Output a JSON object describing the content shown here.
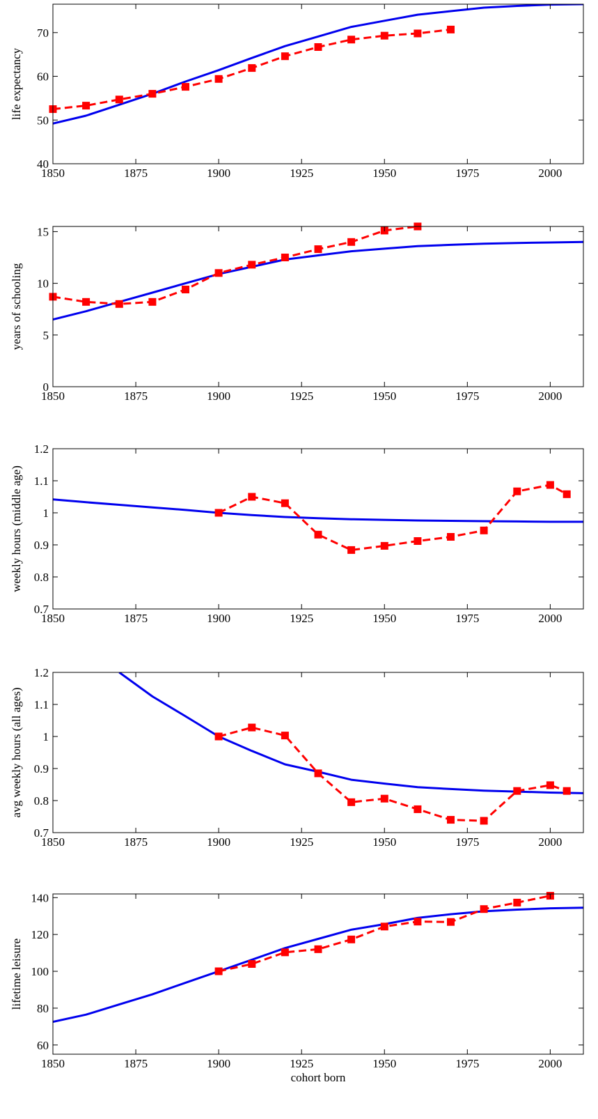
{
  "chart_data": [
    {
      "type": "line",
      "ylabel": "life expectancy",
      "xlabel": "",
      "xlim": [
        1850,
        2010
      ],
      "ylim": [
        40,
        76.5
      ],
      "xticks": [
        1850,
        1875,
        1900,
        1925,
        1950,
        1975,
        2000
      ],
      "yticks": [
        40,
        50,
        60,
        70
      ],
      "grid": false,
      "series": [
        {
          "style": "solid",
          "color": "#0000ee",
          "x": [
            1850,
            1860,
            1870,
            1880,
            1890,
            1900,
            1910,
            1920,
            1930,
            1940,
            1950,
            1960,
            1970,
            1980,
            1990,
            2000,
            2010
          ],
          "y": [
            49.2,
            51.0,
            53.5,
            56.0,
            58.8,
            61.4,
            64.2,
            66.9,
            69.1,
            71.3,
            72.7,
            74.1,
            74.9,
            75.7,
            76.1,
            76.4,
            76.5
          ]
        },
        {
          "style": "dashed",
          "color": "#ff0000",
          "marker": "square",
          "x": [
            1850,
            1860,
            1870,
            1880,
            1890,
            1900,
            1910,
            1920,
            1930,
            1940,
            1950,
            1960,
            1970
          ],
          "y": [
            52.5,
            53.3,
            54.7,
            56.0,
            57.6,
            59.4,
            61.9,
            64.6,
            66.7,
            68.4,
            69.3,
            69.8,
            70.7
          ]
        }
      ]
    },
    {
      "type": "line",
      "ylabel": "years of schooling",
      "xlabel": "",
      "xlim": [
        1850,
        2010
      ],
      "ylim": [
        0,
        15.5
      ],
      "xticks": [
        1850,
        1875,
        1900,
        1925,
        1950,
        1975,
        2000
      ],
      "yticks": [
        0,
        5,
        10,
        15
      ],
      "grid": false,
      "series": [
        {
          "style": "solid",
          "color": "#0000ee",
          "x": [
            1850,
            1860,
            1870,
            1880,
            1890,
            1900,
            1910,
            1920,
            1930,
            1940,
            1950,
            1960,
            1970,
            1980,
            1990,
            2000,
            2010
          ],
          "y": [
            6.5,
            7.3,
            8.2,
            9.1,
            10.0,
            10.9,
            11.6,
            12.3,
            12.7,
            13.1,
            13.35,
            13.6,
            13.72,
            13.83,
            13.9,
            13.95,
            14.0
          ]
        },
        {
          "style": "dashed",
          "color": "#ff0000",
          "marker": "square",
          "x": [
            1850,
            1860,
            1870,
            1880,
            1890,
            1900,
            1910,
            1920,
            1930,
            1940,
            1950,
            1960
          ],
          "y": [
            8.7,
            8.2,
            8.0,
            8.2,
            9.4,
            11.0,
            11.8,
            12.5,
            13.3,
            14.0,
            15.1,
            15.5
          ]
        }
      ]
    },
    {
      "type": "line",
      "ylabel": "weekly hours (middle age)",
      "xlabel": "",
      "xlim": [
        1850,
        2010
      ],
      "ylim": [
        0.7,
        1.2
      ],
      "xticks": [
        1850,
        1875,
        1900,
        1925,
        1950,
        1975,
        2000
      ],
      "yticks": [
        0.7,
        0.8,
        0.9,
        1,
        1.1,
        1.2
      ],
      "grid": false,
      "series": [
        {
          "style": "solid",
          "color": "#0000ee",
          "x": [
            1850,
            1860,
            1870,
            1880,
            1890,
            1900,
            1910,
            1920,
            1930,
            1940,
            1950,
            1960,
            1970,
            1980,
            1990,
            2000,
            2010
          ],
          "y": [
            1.042,
            1.033,
            1.025,
            1.017,
            1.009,
            1.0,
            0.993,
            0.987,
            0.983,
            0.98,
            0.978,
            0.976,
            0.975,
            0.974,
            0.973,
            0.972,
            0.972
          ]
        },
        {
          "style": "dashed",
          "color": "#ff0000",
          "marker": "square",
          "x": [
            1900,
            1910,
            1920,
            1930,
            1940,
            1950,
            1960,
            1970,
            1980,
            1990,
            2000,
            2005
          ],
          "y": [
            1.0,
            1.05,
            1.03,
            0.932,
            0.884,
            0.897,
            0.912,
            0.925,
            0.945,
            1.067,
            1.087,
            1.058
          ]
        }
      ]
    },
    {
      "type": "line",
      "ylabel": "avg weekly hours (all ages)",
      "xlabel": "",
      "xlim": [
        1850,
        2010
      ],
      "ylim": [
        0.7,
        1.2
      ],
      "xticks": [
        1850,
        1875,
        1900,
        1925,
        1950,
        1975,
        2000
      ],
      "yticks": [
        0.7,
        0.8,
        0.9,
        1,
        1.1,
        1.2
      ],
      "grid": false,
      "series": [
        {
          "style": "solid",
          "color": "#0000ee",
          "x": [
            1870,
            1880,
            1890,
            1900,
            1910,
            1920,
            1930,
            1940,
            1950,
            1960,
            1970,
            1980,
            1990,
            2000,
            2010
          ],
          "y": [
            1.2,
            1.125,
            1.063,
            1.0,
            0.955,
            0.913,
            0.89,
            0.865,
            0.853,
            0.842,
            0.836,
            0.831,
            0.828,
            0.825,
            0.823
          ]
        },
        {
          "style": "dashed",
          "color": "#ff0000",
          "marker": "square",
          "x": [
            1900,
            1910,
            1920,
            1930,
            1940,
            1950,
            1960,
            1970,
            1980,
            1990,
            2000,
            2005
          ],
          "y": [
            1.0,
            1.028,
            1.003,
            0.885,
            0.795,
            0.806,
            0.773,
            0.74,
            0.737,
            0.83,
            0.848,
            0.83
          ]
        }
      ]
    },
    {
      "type": "line",
      "ylabel": "lifetime leisure",
      "xlabel": "cohort born",
      "xlim": [
        1850,
        2010
      ],
      "ylim": [
        55,
        142
      ],
      "xticks": [
        1850,
        1875,
        1900,
        1925,
        1950,
        1975,
        2000
      ],
      "yticks": [
        60,
        80,
        100,
        120,
        140
      ],
      "grid": false,
      "series": [
        {
          "style": "solid",
          "color": "#0000ee",
          "x": [
            1850,
            1860,
            1870,
            1880,
            1890,
            1900,
            1910,
            1920,
            1930,
            1940,
            1950,
            1960,
            1970,
            1980,
            1990,
            2000,
            2010
          ],
          "y": [
            72.6,
            76.5,
            82.0,
            87.5,
            93.8,
            100.0,
            106.3,
            112.6,
            117.6,
            122.6,
            125.6,
            129.0,
            131.0,
            132.6,
            133.5,
            134.2,
            134.5
          ]
        },
        {
          "style": "dashed",
          "color": "#ff0000",
          "marker": "square",
          "x": [
            1900,
            1910,
            1920,
            1930,
            1940,
            1950,
            1960,
            1970,
            1980,
            1990,
            2000
          ],
          "y": [
            100.0,
            104.0,
            110.3,
            112.0,
            117.3,
            124.3,
            127.0,
            126.8,
            133.8,
            137.3,
            141.0
          ]
        }
      ]
    }
  ]
}
